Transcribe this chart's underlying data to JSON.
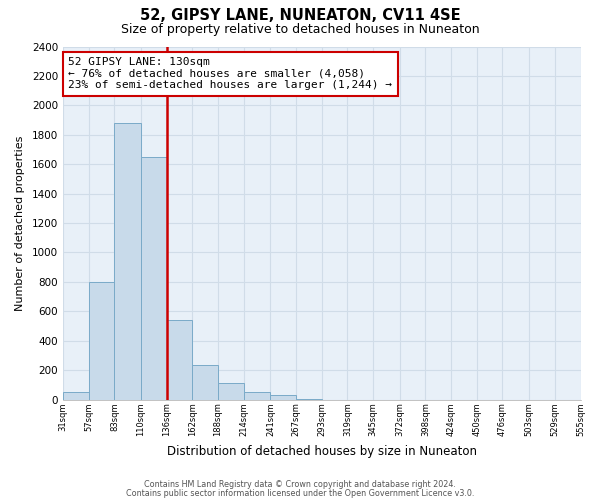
{
  "title": "52, GIPSY LANE, NUNEATON, CV11 4SE",
  "subtitle": "Size of property relative to detached houses in Nuneaton",
  "xlabel": "Distribution of detached houses by size in Nuneaton",
  "ylabel": "Number of detached properties",
  "bar_edges": [
    31,
    57,
    83,
    110,
    136,
    162,
    188,
    214,
    241,
    267,
    293,
    319,
    345,
    372,
    398,
    424,
    450,
    476,
    503,
    529,
    555
  ],
  "bar_heights": [
    50,
    800,
    1880,
    1650,
    540,
    235,
    110,
    50,
    30,
    5,
    0,
    0,
    0,
    0,
    0,
    0,
    0,
    0,
    0,
    0
  ],
  "bar_color": "#c8daea",
  "bar_edge_color": "#7aaac8",
  "property_line_x": 136,
  "property_line_color": "#cc0000",
  "annotation_title": "52 GIPSY LANE: 130sqm",
  "annotation_line1": "← 76% of detached houses are smaller (4,058)",
  "annotation_line2": "23% of semi-detached houses are larger (1,244) →",
  "annotation_box_edgecolor": "#cc0000",
  "ylim": [
    0,
    2400
  ],
  "yticks": [
    0,
    200,
    400,
    600,
    800,
    1000,
    1200,
    1400,
    1600,
    1800,
    2000,
    2200,
    2400
  ],
  "tick_labels": [
    "31sqm",
    "57sqm",
    "83sqm",
    "110sqm",
    "136sqm",
    "162sqm",
    "188sqm",
    "214sqm",
    "241sqm",
    "267sqm",
    "293sqm",
    "319sqm",
    "345sqm",
    "372sqm",
    "398sqm",
    "424sqm",
    "450sqm",
    "476sqm",
    "503sqm",
    "529sqm",
    "555sqm"
  ],
  "footer_line1": "Contains HM Land Registry data © Crown copyright and database right 2024.",
  "footer_line2": "Contains public sector information licensed under the Open Government Licence v3.0.",
  "background_color": "#ffffff",
  "grid_color": "#d0dce8",
  "plot_bg_color": "#e8f0f8"
}
